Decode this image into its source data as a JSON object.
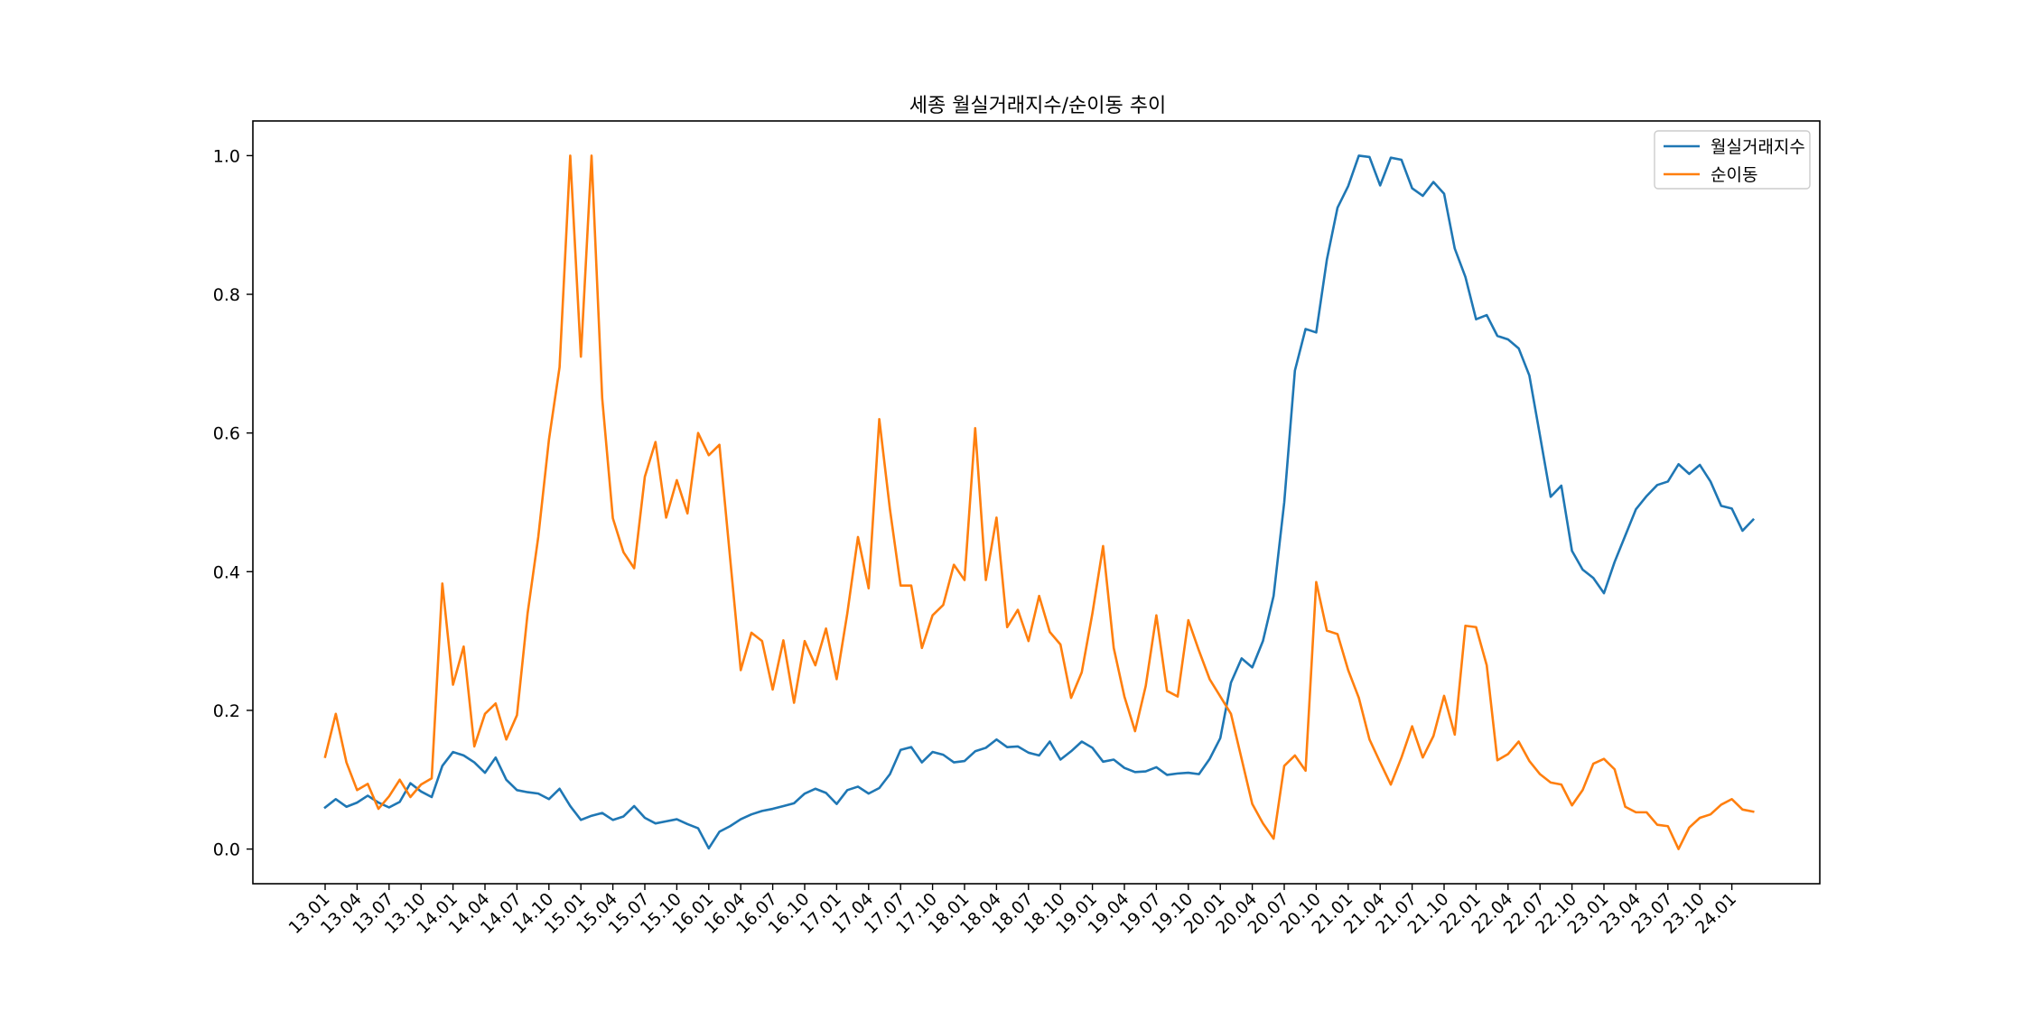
{
  "chart_data": {
    "type": "line",
    "title": "세종 월실거래지수/순이동 추이",
    "xlabel": "",
    "ylabel": "",
    "ylim": [
      -0.05,
      1.05
    ],
    "yticks": [
      "0.0",
      "0.2",
      "0.4",
      "0.6",
      "0.8",
      "1.0"
    ],
    "xtick_labels": [
      "13.01",
      "13.04",
      "13.07",
      "13.10",
      "14.01",
      "14.04",
      "14.07",
      "14.10",
      "15.01",
      "15.04",
      "15.07",
      "15.10",
      "16.01",
      "16.04",
      "16.07",
      "16.10",
      "17.01",
      "17.04",
      "17.07",
      "17.10",
      "18.01",
      "18.04",
      "18.07",
      "18.10",
      "19.01",
      "19.04",
      "19.07",
      "19.10",
      "20.01",
      "20.04",
      "20.07",
      "20.10",
      "21.01",
      "21.04",
      "21.07",
      "21.10",
      "22.01",
      "22.04",
      "22.07",
      "22.10",
      "23.01",
      "23.04",
      "23.07",
      "23.10",
      "24.01"
    ],
    "grid": false,
    "legend": "top-right",
    "series": [
      {
        "name": "월실거래지수",
        "color": "#1f77b4",
        "values": [
          0.06,
          0.072,
          0.061,
          0.067,
          0.077,
          0.067,
          0.06,
          0.068,
          0.095,
          0.083,
          0.075,
          0.12,
          0.14,
          0.135,
          0.125,
          0.11,
          0.132,
          0.1,
          0.085,
          0.082,
          0.08,
          0.072,
          0.087,
          0.062,
          0.042,
          0.048,
          0.052,
          0.042,
          0.047,
          0.062,
          0.045,
          0.037,
          0.04,
          0.043,
          0.036,
          0.03,
          0.001,
          0.025,
          0.033,
          0.043,
          0.05,
          0.055,
          0.058,
          0.062,
          0.066,
          0.08,
          0.087,
          0.081,
          0.065,
          0.085,
          0.09,
          0.08,
          0.088,
          0.108,
          0.143,
          0.147,
          0.125,
          0.14,
          0.136,
          0.125,
          0.127,
          0.141,
          0.146,
          0.158,
          0.147,
          0.148,
          0.139,
          0.135,
          0.155,
          0.129,
          0.141,
          0.155,
          0.146,
          0.126,
          0.129,
          0.117,
          0.111,
          0.112,
          0.118,
          0.107,
          0.109,
          0.11,
          0.108,
          0.13,
          0.16,
          0.24,
          0.275,
          0.262,
          0.3,
          0.365,
          0.5,
          0.69,
          0.75,
          0.745,
          0.85,
          0.925,
          0.956,
          1.0,
          0.998,
          0.957,
          0.997,
          0.994,
          0.953,
          0.942,
          0.962,
          0.945,
          0.866,
          0.825,
          0.764,
          0.77,
          0.74,
          0.735,
          0.722,
          0.683,
          0.596,
          0.508,
          0.524,
          0.43,
          0.403,
          0.391,
          0.369,
          0.414,
          0.452,
          0.49,
          0.509,
          0.525,
          0.53,
          0.555,
          0.541,
          0.554,
          0.53,
          0.495,
          0.491,
          0.459,
          0.475
        ]
      },
      {
        "name": "순이동",
        "color": "#ff7f0e",
        "values": [
          0.133,
          0.195,
          0.125,
          0.085,
          0.094,
          0.058,
          0.076,
          0.1,
          0.075,
          0.093,
          0.102,
          0.383,
          0.237,
          0.292,
          0.148,
          0.195,
          0.21,
          0.158,
          0.193,
          0.34,
          0.45,
          0.59,
          0.695,
          1.0,
          0.71,
          1.0,
          0.65,
          0.477,
          0.428,
          0.405,
          0.537,
          0.587,
          0.478,
          0.532,
          0.484,
          0.6,
          0.568,
          0.583,
          0.42,
          0.258,
          0.312,
          0.3,
          0.23,
          0.301,
          0.211,
          0.3,
          0.265,
          0.318,
          0.245,
          0.34,
          0.45,
          0.376,
          0.62,
          0.49,
          0.38,
          0.38,
          0.29,
          0.337,
          0.352,
          0.41,
          0.388,
          0.607,
          0.388,
          0.478,
          0.32,
          0.345,
          0.3,
          0.365,
          0.313,
          0.295,
          0.218,
          0.255,
          0.34,
          0.437,
          0.29,
          0.22,
          0.17,
          0.235,
          0.337,
          0.228,
          0.22,
          0.33,
          0.286,
          0.245,
          0.22,
          0.195,
          0.13,
          0.065,
          0.037,
          0.015,
          0.12,
          0.135,
          0.113,
          0.385,
          0.315,
          0.31,
          0.258,
          0.218,
          0.158,
          0.125,
          0.093,
          0.132,
          0.177,
          0.132,
          0.163,
          0.221,
          0.165,
          0.322,
          0.32,
          0.265,
          0.128,
          0.137,
          0.155,
          0.127,
          0.108,
          0.096,
          0.093,
          0.063,
          0.085,
          0.123,
          0.13,
          0.115,
          0.061,
          0.053,
          0.053,
          0.035,
          0.033,
          0.0,
          0.031,
          0.045,
          0.05,
          0.064,
          0.072,
          0.057,
          0.054
        ]
      }
    ]
  }
}
